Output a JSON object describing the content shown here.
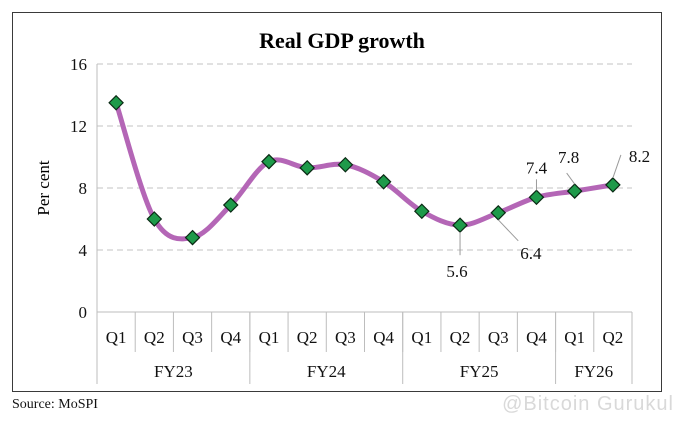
{
  "chart_data": {
    "type": "line",
    "title": "Real GDP growth",
    "ylabel": "Per cent",
    "xlabel": "",
    "ylim": [
      0,
      16
    ],
    "yticks": [
      0,
      4,
      8,
      12,
      16
    ],
    "grid": true,
    "categories": [
      "Q1",
      "Q2",
      "Q3",
      "Q4",
      "Q1",
      "Q2",
      "Q3",
      "Q4",
      "Q1",
      "Q2",
      "Q3",
      "Q4",
      "Q1",
      "Q2"
    ],
    "groups": [
      {
        "label": "FY23",
        "count": 4
      },
      {
        "label": "FY24",
        "count": 4
      },
      {
        "label": "FY25",
        "count": 4
      },
      {
        "label": "FY26",
        "count": 2
      }
    ],
    "series": [
      {
        "name": "Real GDP growth",
        "values": [
          13.5,
          6.0,
          4.8,
          6.9,
          9.7,
          9.3,
          9.5,
          8.4,
          6.5,
          5.6,
          6.4,
          7.4,
          7.8,
          8.2
        ],
        "line_color": "#b466b6",
        "marker_color": "#1e9a4a"
      }
    ],
    "annotations": [
      {
        "index": 9,
        "text": "5.6"
      },
      {
        "index": 10,
        "text": "6.4"
      },
      {
        "index": 11,
        "text": "7.4"
      },
      {
        "index": 12,
        "text": "7.8"
      },
      {
        "index": 13,
        "text": "8.2"
      }
    ]
  },
  "source": "Source: MoSPI",
  "watermark": "@Bitcoin Gurukul"
}
